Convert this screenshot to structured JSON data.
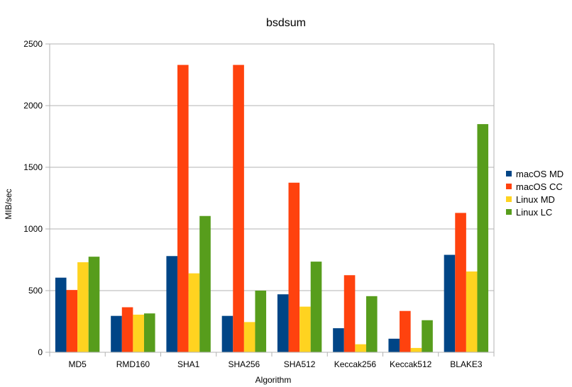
{
  "chart_data": {
    "type": "bar",
    "title": "bsdsum",
    "xlabel": "Algorithm",
    "ylabel": "MIB/sec",
    "ylim": [
      0,
      2500
    ],
    "yticks": [
      0,
      500,
      1000,
      1500,
      2000,
      2500
    ],
    "grid": true,
    "legend_position": "right",
    "categories": [
      "MD5",
      "RMD160",
      "SHA1",
      "SHA256",
      "SHA512",
      "Keccak256",
      "Keccak512",
      "BLAKE3"
    ],
    "series": [
      {
        "name": "macOS MD",
        "color": "#004586",
        "values": [
          605,
          295,
          780,
          295,
          470,
          195,
          110,
          790
        ]
      },
      {
        "name": "macOS CC",
        "color": "#ff420e",
        "values": [
          505,
          365,
          2330,
          2330,
          1375,
          625,
          335,
          1130
        ]
      },
      {
        "name": "Linux MD",
        "color": "#ffd320",
        "values": [
          730,
          305,
          640,
          245,
          370,
          65,
          35,
          655
        ]
      },
      {
        "name": "Linux LC",
        "color": "#579d1c",
        "values": [
          775,
          315,
          1105,
          500,
          735,
          455,
          260,
          1850
        ]
      }
    ]
  }
}
